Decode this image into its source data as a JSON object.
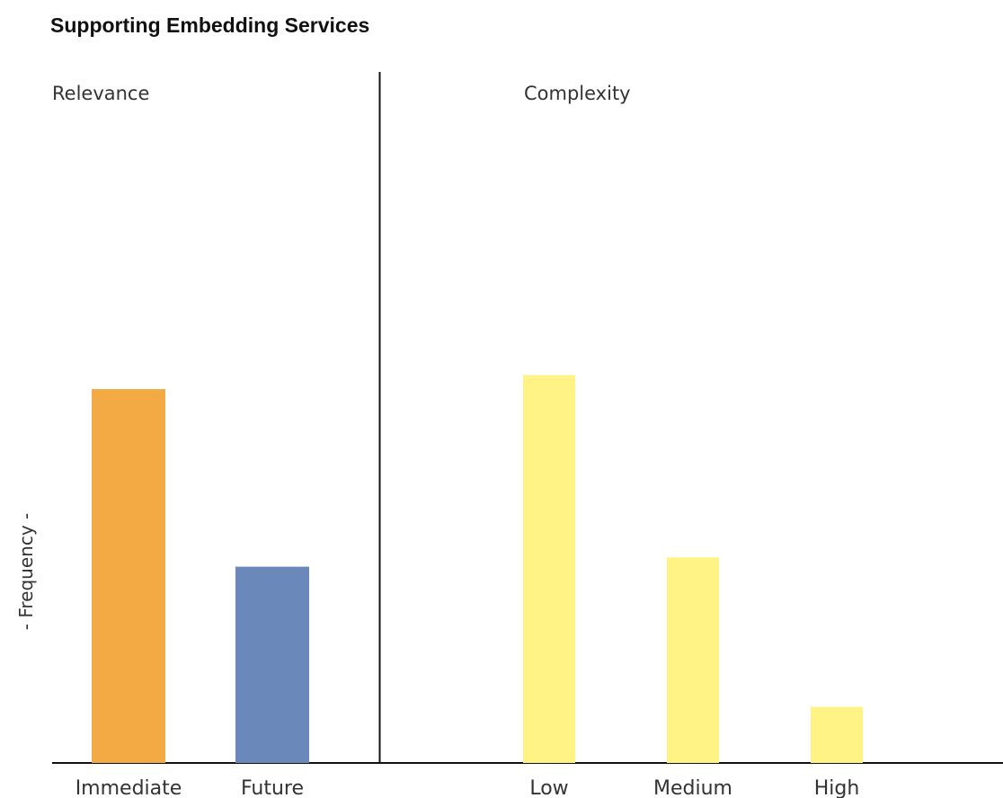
{
  "chart_data": {
    "type": "bar",
    "title": "Supporting Embedding Services",
    "xlabel": "",
    "ylabel": "- Frequency -",
    "ylim": [
      0,
      100
    ],
    "grid": false,
    "legend": "none",
    "groups": [
      {
        "label": "Relevance",
        "categories": [
          "Immediate",
          "Future"
        ],
        "values": [
          80,
          42
        ],
        "colors": [
          "#F4AA44",
          "#6B88BA"
        ]
      },
      {
        "label": "Complexity",
        "categories": [
          "Low",
          "Medium",
          "High"
        ],
        "values": [
          83,
          44,
          12
        ],
        "colors": [
          "#FFF385",
          "#FFF385",
          "#FFF385"
        ]
      }
    ]
  }
}
